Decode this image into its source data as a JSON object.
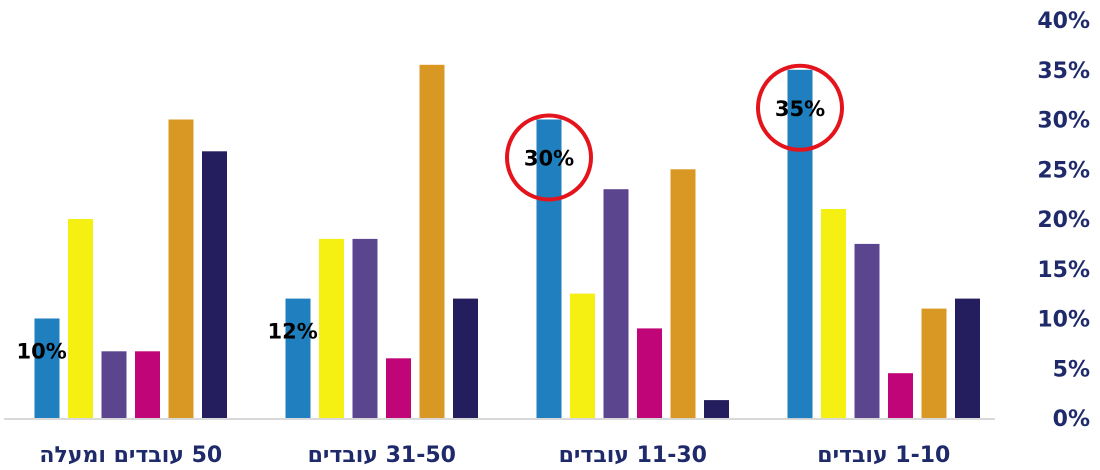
{
  "chart_data": {
    "type": "bar",
    "categories": [
      "1-10 עובדים",
      "11-30 עובדים",
      "31-50 עובדים",
      "50 עובדים ומעלה"
    ],
    "series": [
      {
        "color": "#1f7fbf",
        "values": [
          35,
          30,
          12,
          10
        ]
      },
      {
        "color": "#f5ef12",
        "values": [
          21,
          12.5,
          18,
          20
        ]
      },
      {
        "color": "#5b458f",
        "values": [
          17.5,
          23,
          18,
          6.7
        ]
      },
      {
        "color": "#bf0577",
        "values": [
          4.5,
          9,
          6,
          6.7
        ]
      },
      {
        "color": "#d99823",
        "values": [
          11,
          25,
          35.5,
          30
        ]
      },
      {
        "color": "#241e5e",
        "values": [
          12,
          1.8,
          12,
          26.8
        ]
      }
    ],
    "y_ticks": [
      "0%",
      "5%",
      "10%",
      "15%",
      "20%",
      "25%",
      "30%",
      "35%",
      "40%"
    ],
    "ylim": [
      0,
      40
    ],
    "y_axis_side": "right",
    "category_order": "right-to-left",
    "annotations": [
      {
        "category": 0,
        "series": 0,
        "text": "35%",
        "circled": true
      },
      {
        "category": 1,
        "series": 0,
        "text": "30%",
        "circled": true
      },
      {
        "category": 2,
        "series": 0,
        "text": "12%",
        "circled": false
      },
      {
        "category": 3,
        "series": 0,
        "text": "10%",
        "circled": false
      }
    ],
    "circle_color": "#e3141b",
    "axis_text_color": "#1f2a6b",
    "baseline_color": "#d9d9d9"
  }
}
